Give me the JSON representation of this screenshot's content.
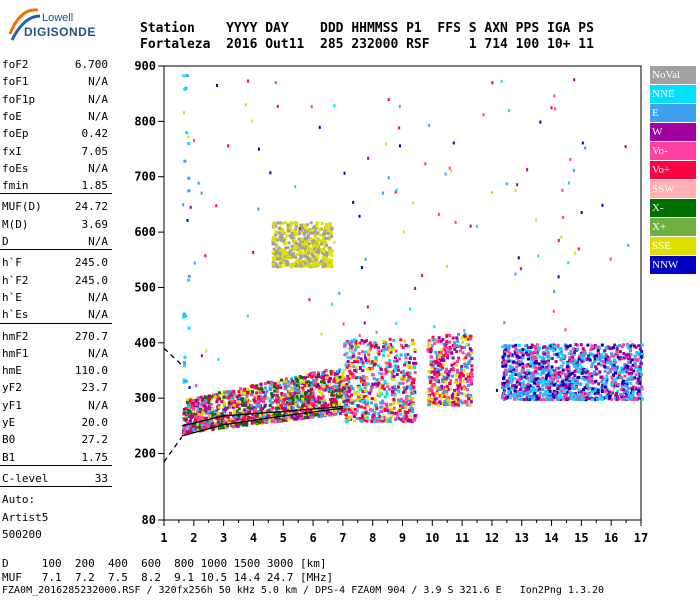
{
  "logo": {
    "top": "Lowell",
    "bottom": "DIGISONDE"
  },
  "header": {
    "labels": "Station    YYYY DAY    DDD HHMMSS P1  FFS S AXN PPS IGA PS",
    "values": "Fortaleza  2016 Out11  285 232000 RSF     1 714 100 10+ 11"
  },
  "params": {
    "group1": [
      {
        "name": "foF2",
        "value": "6.700"
      },
      {
        "name": "foF1",
        "value": "N/A"
      },
      {
        "name": "foF1p",
        "value": "N/A"
      },
      {
        "name": "foE",
        "value": "N/A"
      },
      {
        "name": "foEp",
        "value": "0.42"
      },
      {
        "name": "fxI",
        "value": "7.05"
      },
      {
        "name": "foEs",
        "value": "N/A"
      },
      {
        "name": "fmin",
        "value": "1.85"
      }
    ],
    "group2": [
      {
        "name": "MUF(D)",
        "value": "24.72"
      },
      {
        "name": "M(D)",
        "value": "3.69"
      },
      {
        "name": "D",
        "value": "N/A"
      }
    ],
    "group3": [
      {
        "name": "h`F",
        "value": "245.0"
      },
      {
        "name": "h`F2",
        "value": "245.0"
      },
      {
        "name": "h`E",
        "value": "N/A"
      },
      {
        "name": "h`Es",
        "value": "N/A"
      }
    ],
    "group4": [
      {
        "name": "hmF2",
        "value": "270.7"
      },
      {
        "name": "hmF1",
        "value": "N/A"
      },
      {
        "name": "hmE",
        "value": "110.0"
      },
      {
        "name": "yF2",
        "value": "23.7"
      },
      {
        "name": "yF1",
        "value": "N/A"
      },
      {
        "name": "yE",
        "value": "20.0"
      },
      {
        "name": "B0",
        "value": "27.2"
      },
      {
        "name": "B1",
        "value": "1.75"
      }
    ],
    "clevel": {
      "name": "C-level",
      "value": "33"
    },
    "footer_lines": [
      "Auto:",
      "Artist5",
      "500200"
    ]
  },
  "bottom": {
    "d_line": "D     100  200  400  600  800 1000 1500 3000 [km]",
    "muf_line": "MUF   7.1  7.2  7.5  8.2  9.1 10.5 14.4 24.7 [MHz]",
    "file_line": "FZA0M_2016285232000.RSF / 320fx256h 50 kHz 5.0 km / DPS-4 FZA0M 904 / 3.9 S 321.6 E   Ion2Png 1.3.20"
  },
  "legend": [
    {
      "label": "NoVal",
      "color": "#a0a0a0"
    },
    {
      "label": "NNE",
      "color": "#00e0ff"
    },
    {
      "label": "E",
      "color": "#3fa0f0"
    },
    {
      "label": "W",
      "color": "#a000a0"
    },
    {
      "label": "Vo-",
      "color": "#ff40a0"
    },
    {
      "label": "Vo+",
      "color": "#ff0040"
    },
    {
      "label": "SSW",
      "color": "#ffb0b0"
    },
    {
      "label": "X-",
      "color": "#007000"
    },
    {
      "label": "X+",
      "color": "#70b040"
    },
    {
      "label": "SSE",
      "color": "#e0e000"
    },
    {
      "label": "NNW",
      "color": "#0000c0"
    }
  ],
  "chart_data": {
    "type": "scatter",
    "xlim": [
      1,
      17
    ],
    "ylim": [
      80,
      900
    ],
    "x_ticks": [
      1,
      2,
      3,
      4,
      5,
      6,
      7,
      8,
      9,
      10,
      11,
      12,
      13,
      14,
      15,
      16,
      17
    ],
    "y_ticks": [
      80,
      200,
      300,
      400,
      500,
      600,
      700,
      800,
      900
    ],
    "trace_clusters": [
      {
        "x_range": [
          1.6,
          7.0
        ],
        "y_range": [
          240,
          350
        ],
        "colors": [
          "#ff0040",
          "#ff40a0",
          "#a000a0",
          "#3fa0f0",
          "#e0e000",
          "#007000"
        ]
      },
      {
        "x_range": [
          7.0,
          9.4
        ],
        "y_range": [
          260,
          410
        ],
        "colors": [
          "#ff0040",
          "#ff40a0",
          "#3fa0f0",
          "#00e0ff",
          "#e0e000",
          "#a000a0"
        ]
      },
      {
        "x_range": [
          9.8,
          11.3
        ],
        "y_range": [
          290,
          420
        ],
        "colors": [
          "#ff0040",
          "#ff40a0",
          "#e0e000",
          "#3fa0f0",
          "#a000a0"
        ]
      },
      {
        "x_range": [
          12.3,
          17.0
        ],
        "y_range": [
          300,
          400
        ],
        "colors": [
          "#0000c0",
          "#3fa0f0",
          "#a000a0",
          "#ff40a0",
          "#00e0ff"
        ]
      },
      {
        "x_range": [
          4.6,
          6.6
        ],
        "y_range": [
          540,
          620
        ],
        "colors": [
          "#e0e000",
          "#a0a0a0"
        ]
      },
      {
        "x_range": [
          1.6,
          1.8
        ],
        "y_range": [
          250,
          900
        ],
        "colors": [
          "#3fa0f0",
          "#00e0ff"
        ]
      }
    ],
    "profile_upper": [
      [
        1.6,
        250
      ],
      [
        3.0,
        268
      ],
      [
        5.0,
        276
      ],
      [
        7.0,
        285
      ]
    ],
    "profile_lower": [
      [
        1.6,
        232
      ],
      [
        3.0,
        252
      ],
      [
        5.0,
        268
      ],
      [
        7.0,
        282
      ]
    ],
    "extrapolation_upper": [
      [
        1.0,
        390
      ],
      [
        1.6,
        360
      ]
    ],
    "extrapolation_lower": [
      [
        1.0,
        185
      ],
      [
        1.6,
        230
      ]
    ]
  }
}
